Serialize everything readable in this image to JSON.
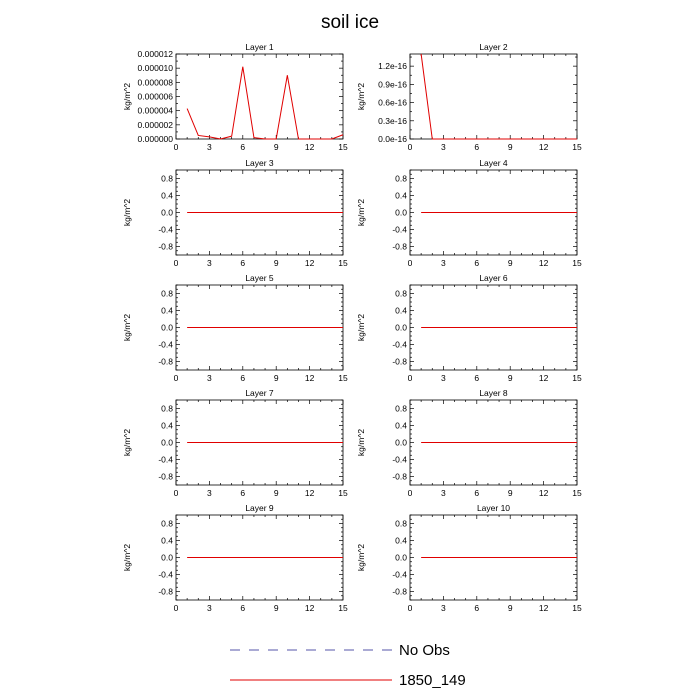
{
  "title": "soil ice",
  "colors": {
    "obs": "#5555aa",
    "model": "#e00000"
  },
  "legend": [
    {
      "label": "No Obs",
      "style": "dashed",
      "color": "#5555aa"
    },
    {
      "label": "1850_149",
      "style": "solid",
      "color": "#e00000"
    }
  ],
  "chart_data": [
    {
      "type": "line",
      "title": "Layer 1",
      "ylabel": "kg/m^2",
      "xlim": [
        0,
        15
      ],
      "ylim": [
        0,
        1.2e-05
      ],
      "xticks": [
        "0",
        "3",
        "6",
        "9",
        "12",
        "15"
      ],
      "yticks": [
        "0.000000",
        "0.000002",
        "0.000004",
        "0.000006",
        "0.000008",
        "0.000010",
        "0.000012"
      ],
      "series": [
        {
          "x": [
            1,
            2,
            3,
            4,
            5,
            6,
            7,
            8,
            9,
            10,
            11,
            12,
            13,
            14,
            15
          ],
          "values": [
            4.3e-06,
            5e-07,
            3e-07,
            0.0,
            4e-07,
            1.02e-05,
            2e-07,
            0.0,
            0.0,
            9e-06,
            0.0,
            0.0,
            0.0,
            0.0,
            6e-07
          ]
        }
      ]
    },
    {
      "type": "line",
      "title": "Layer 2",
      "ylabel": "kg/m^2",
      "xlim": [
        0,
        15
      ],
      "ylim": [
        0,
        1.4e-16
      ],
      "xticks": [
        "0",
        "3",
        "6",
        "9",
        "12",
        "15"
      ],
      "yticks": [
        "0.0e-16",
        "0.3e-16",
        "0.6e-16",
        "0.9e-16",
        "1.2e-16"
      ],
      "series": [
        {
          "x": [
            1,
            2,
            3,
            4,
            5,
            6,
            7,
            8,
            9,
            10,
            11,
            12,
            13,
            14,
            15
          ],
          "values": [
            1.4e-16,
            0,
            0,
            0,
            0,
            0,
            0,
            0,
            0,
            0,
            0,
            0,
            0,
            0,
            0
          ]
        }
      ]
    },
    {
      "type": "line",
      "title": "Layer 3",
      "ylabel": "kg/m^2",
      "xlim": [
        0,
        15
      ],
      "ylim": [
        -1,
        1
      ],
      "xticks": [
        "0",
        "3",
        "6",
        "9",
        "12",
        "15"
      ],
      "yticks": [
        "-0.8",
        "-0.4",
        "0.0",
        "0.4",
        "0.8"
      ],
      "series": [
        {
          "x": [
            1,
            2,
            3,
            4,
            5,
            6,
            7,
            8,
            9,
            10,
            11,
            12,
            13,
            14,
            15
          ],
          "values": [
            0,
            0,
            0,
            0,
            0,
            0,
            0,
            0,
            0,
            0,
            0,
            0,
            0,
            0,
            0
          ]
        }
      ]
    },
    {
      "type": "line",
      "title": "Layer 4",
      "ylabel": "kg/m^2",
      "xlim": [
        0,
        15
      ],
      "ylim": [
        -1,
        1
      ],
      "xticks": [
        "0",
        "3",
        "6",
        "9",
        "12",
        "15"
      ],
      "yticks": [
        "-0.8",
        "-0.4",
        "0.0",
        "0.4",
        "0.8"
      ],
      "series": [
        {
          "x": [
            1,
            2,
            3,
            4,
            5,
            6,
            7,
            8,
            9,
            10,
            11,
            12,
            13,
            14,
            15
          ],
          "values": [
            0,
            0,
            0,
            0,
            0,
            0,
            0,
            0,
            0,
            0,
            0,
            0,
            0,
            0,
            0
          ]
        }
      ]
    },
    {
      "type": "line",
      "title": "Layer 5",
      "ylabel": "kg/m^2",
      "xlim": [
        0,
        15
      ],
      "ylim": [
        -1,
        1
      ],
      "xticks": [
        "0",
        "3",
        "6",
        "9",
        "12",
        "15"
      ],
      "yticks": [
        "-0.8",
        "-0.4",
        "0.0",
        "0.4",
        "0.8"
      ],
      "series": [
        {
          "x": [
            1,
            2,
            3,
            4,
            5,
            6,
            7,
            8,
            9,
            10,
            11,
            12,
            13,
            14,
            15
          ],
          "values": [
            0,
            0,
            0,
            0,
            0,
            0,
            0,
            0,
            0,
            0,
            0,
            0,
            0,
            0,
            0
          ]
        }
      ]
    },
    {
      "type": "line",
      "title": "Layer 6",
      "ylabel": "kg/m^2",
      "xlim": [
        0,
        15
      ],
      "ylim": [
        -1,
        1
      ],
      "xticks": [
        "0",
        "3",
        "6",
        "9",
        "12",
        "15"
      ],
      "yticks": [
        "-0.8",
        "-0.4",
        "0.0",
        "0.4",
        "0.8"
      ],
      "series": [
        {
          "x": [
            1,
            2,
            3,
            4,
            5,
            6,
            7,
            8,
            9,
            10,
            11,
            12,
            13,
            14,
            15
          ],
          "values": [
            0,
            0,
            0,
            0,
            0,
            0,
            0,
            0,
            0,
            0,
            0,
            0,
            0,
            0,
            0
          ]
        }
      ]
    },
    {
      "type": "line",
      "title": "Layer 7",
      "ylabel": "kg/m^2",
      "xlim": [
        0,
        15
      ],
      "ylim": [
        -1,
        1
      ],
      "xticks": [
        "0",
        "3",
        "6",
        "9",
        "12",
        "15"
      ],
      "yticks": [
        "-0.8",
        "-0.4",
        "0.0",
        "0.4",
        "0.8"
      ],
      "series": [
        {
          "x": [
            1,
            2,
            3,
            4,
            5,
            6,
            7,
            8,
            9,
            10,
            11,
            12,
            13,
            14,
            15
          ],
          "values": [
            0,
            0,
            0,
            0,
            0,
            0,
            0,
            0,
            0,
            0,
            0,
            0,
            0,
            0,
            0
          ]
        }
      ]
    },
    {
      "type": "line",
      "title": "Layer 8",
      "ylabel": "kg/m^2",
      "xlim": [
        0,
        15
      ],
      "ylim": [
        -1,
        1
      ],
      "xticks": [
        "0",
        "3",
        "6",
        "9",
        "12",
        "15"
      ],
      "yticks": [
        "-0.8",
        "-0.4",
        "0.0",
        "0.4",
        "0.8"
      ],
      "series": [
        {
          "x": [
            1,
            2,
            3,
            4,
            5,
            6,
            7,
            8,
            9,
            10,
            11,
            12,
            13,
            14,
            15
          ],
          "values": [
            0,
            0,
            0,
            0,
            0,
            0,
            0,
            0,
            0,
            0,
            0,
            0,
            0,
            0,
            0
          ]
        }
      ]
    },
    {
      "type": "line",
      "title": "Layer 9",
      "ylabel": "kg/m^2",
      "xlim": [
        0,
        15
      ],
      "ylim": [
        -1,
        1
      ],
      "xticks": [
        "0",
        "3",
        "6",
        "9",
        "12",
        "15"
      ],
      "yticks": [
        "-0.8",
        "-0.4",
        "0.0",
        "0.4",
        "0.8"
      ],
      "series": [
        {
          "x": [
            1,
            2,
            3,
            4,
            5,
            6,
            7,
            8,
            9,
            10,
            11,
            12,
            13,
            14,
            15
          ],
          "values": [
            0,
            0,
            0,
            0,
            0,
            0,
            0,
            0,
            0,
            0,
            0,
            0,
            0,
            0,
            0
          ]
        }
      ]
    },
    {
      "type": "line",
      "title": "Layer 10",
      "ylabel": "kg/m^2",
      "xlim": [
        0,
        15
      ],
      "ylim": [
        -1,
        1
      ],
      "xticks": [
        "0",
        "3",
        "6",
        "9",
        "12",
        "15"
      ],
      "yticks": [
        "-0.8",
        "-0.4",
        "0.0",
        "0.4",
        "0.8"
      ],
      "series": [
        {
          "x": [
            1,
            2,
            3,
            4,
            5,
            6,
            7,
            8,
            9,
            10,
            11,
            12,
            13,
            14,
            15
          ],
          "values": [
            0,
            0,
            0,
            0,
            0,
            0,
            0,
            0,
            0,
            0,
            0,
            0,
            0,
            0,
            0
          ]
        }
      ]
    }
  ]
}
